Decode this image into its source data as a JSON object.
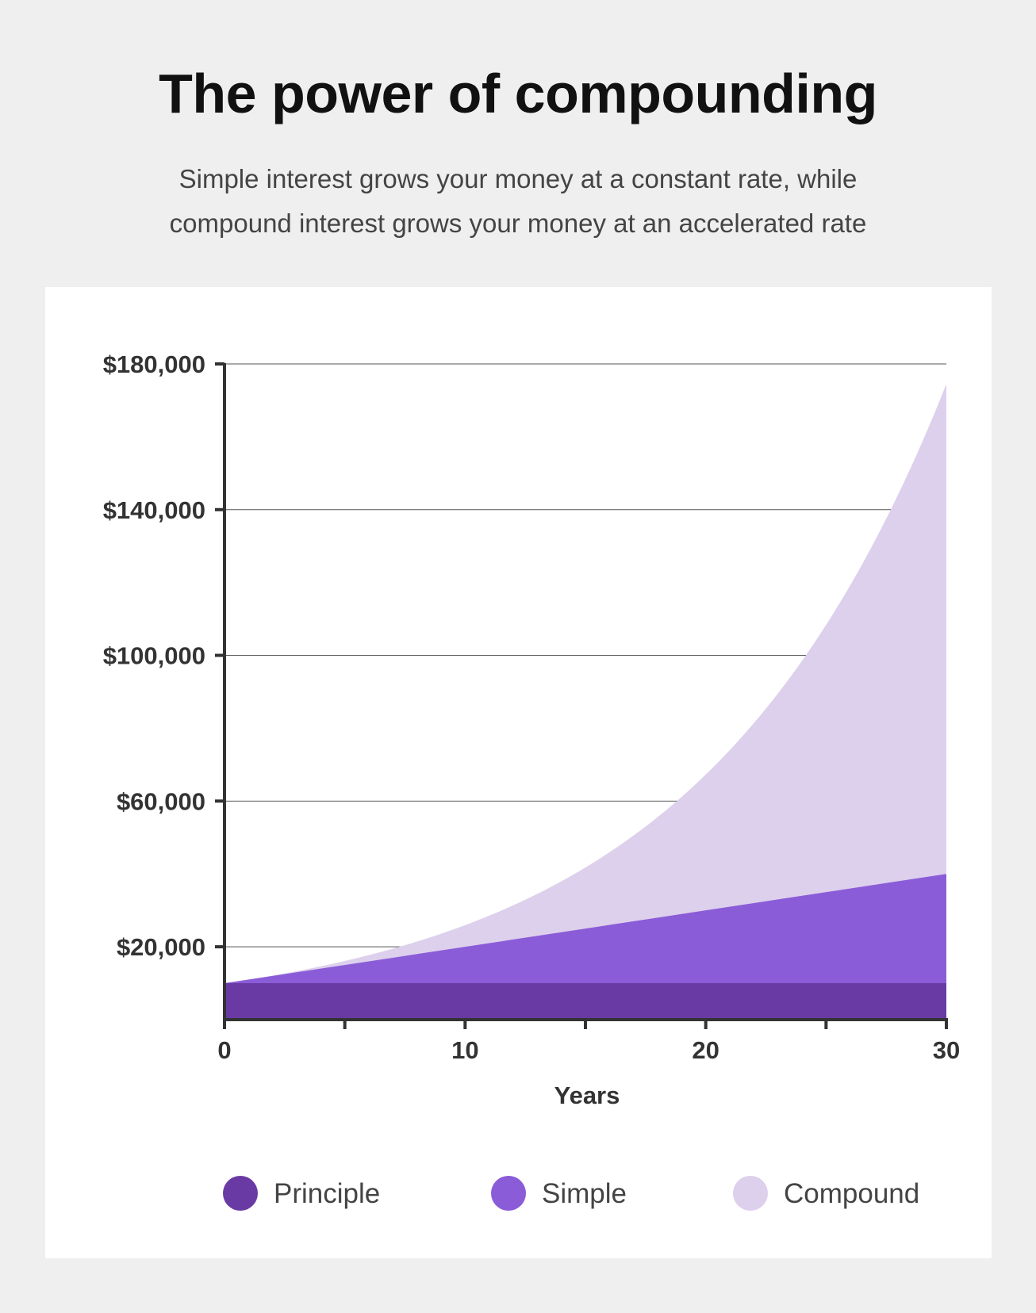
{
  "header": {
    "title": "The power of compounding",
    "subtitle_lines": [
      "Simple interest grows your money at a constant rate, while",
      "compound interest grows your money at an accelerated rate"
    ]
  },
  "chart_data": {
    "type": "area",
    "title": "The power of compounding",
    "xlabel": "Years",
    "ylabel": "",
    "xlim": [
      0,
      30
    ],
    "ylim": [
      0,
      180000
    ],
    "x_ticks": [
      0,
      10,
      20,
      30
    ],
    "x_minor_ticks": [
      5,
      15,
      25
    ],
    "y_ticks": [
      20000,
      60000,
      100000,
      140000,
      180000
    ],
    "y_tick_labels": [
      "$20,000",
      "$60,000",
      "$100,000",
      "$140,000",
      "$180,000"
    ],
    "x_tick_labels": [
      "0",
      "10",
      "20",
      "30"
    ],
    "grid": "horizontal",
    "legend_position": "bottom",
    "x": [
      0,
      2,
      4,
      6,
      8,
      10,
      12,
      14,
      16,
      18,
      20,
      22,
      24,
      26,
      28,
      30
    ],
    "series": [
      {
        "name": "Principle",
        "color": "#6a3aa4",
        "values": [
          10000,
          10000,
          10000,
          10000,
          10000,
          10000,
          10000,
          10000,
          10000,
          10000,
          10000,
          10000,
          10000,
          10000,
          10000,
          10000
        ]
      },
      {
        "name": "Simple",
        "color": "#8b5cd8",
        "values": [
          10000,
          12000,
          14000,
          16000,
          18000,
          20000,
          22000,
          24000,
          26000,
          28000,
          30000,
          32000,
          34000,
          36000,
          38000,
          40000
        ]
      },
      {
        "name": "Compound",
        "color": "#ddd0ec",
        "values": [
          10000,
          12100,
          14641,
          17716,
          21436,
          25937,
          31384,
          37975,
          45950,
          55599,
          67275,
          81403,
          98497,
          119182,
          144210,
          174494
        ]
      }
    ]
  }
}
